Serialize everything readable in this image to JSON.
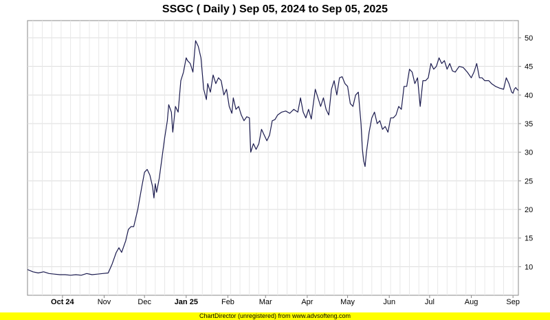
{
  "chart_data": {
    "type": "line",
    "title": "SSGC ( Daily ) Sep 05, 2024 to Sep 05, 2025",
    "xlabel": "",
    "ylabel": "",
    "x_tick_labels": [
      "Oct 24",
      "Nov",
      "Dec",
      "Jan 25",
      "Feb",
      "Mar",
      "Apr",
      "May",
      "Jun",
      "Jul",
      "Aug",
      "Sep"
    ],
    "x_tick_bold": [
      "Oct 24",
      "Jan 25"
    ],
    "x_tick_dates": [
      "2024-10-01",
      "2024-11-01",
      "2024-12-01",
      "2025-01-01",
      "2025-02-01",
      "2025-03-01",
      "2025-04-01",
      "2025-05-01",
      "2025-06-01",
      "2025-07-01",
      "2025-08-01",
      "2025-09-01"
    ],
    "xlim": [
      "2024-09-05",
      "2025-09-05"
    ],
    "ylim": [
      5,
      53
    ],
    "y_ticks": [
      10,
      15,
      20,
      25,
      30,
      35,
      40,
      45,
      50
    ],
    "y_axis_position": "right",
    "grid": true,
    "series": [
      {
        "color": "#1a1a4e",
        "points": [
          [
            "2024-09-05",
            9.5
          ],
          [
            "2024-09-09",
            9.1
          ],
          [
            "2024-09-13",
            8.9
          ],
          [
            "2024-09-17",
            9.1
          ],
          [
            "2024-09-21",
            8.8
          ],
          [
            "2024-09-25",
            8.7
          ],
          [
            "2024-09-29",
            8.6
          ],
          [
            "2024-10-03",
            8.6
          ],
          [
            "2024-10-07",
            8.5
          ],
          [
            "2024-10-11",
            8.6
          ],
          [
            "2024-10-15",
            8.5
          ],
          [
            "2024-10-19",
            8.8
          ],
          [
            "2024-10-23",
            8.6
          ],
          [
            "2024-10-27",
            8.7
          ],
          [
            "2024-10-31",
            8.8
          ],
          [
            "2024-11-04",
            8.9
          ],
          [
            "2024-11-07",
            10.5
          ],
          [
            "2024-11-10",
            12.5
          ],
          [
            "2024-11-12",
            13.3
          ],
          [
            "2024-11-14",
            12.5
          ],
          [
            "2024-11-17",
            14.5
          ],
          [
            "2024-11-19",
            16.5
          ],
          [
            "2024-11-21",
            17.0
          ],
          [
            "2024-11-23",
            17.0
          ],
          [
            "2024-11-26",
            20.0
          ],
          [
            "2024-11-29",
            24.0
          ],
          [
            "2024-12-01",
            26.5
          ],
          [
            "2024-12-03",
            27.0
          ],
          [
            "2024-12-05",
            26.0
          ],
          [
            "2024-12-07",
            24.0
          ],
          [
            "2024-12-08",
            22.0
          ],
          [
            "2024-12-09",
            24.5
          ],
          [
            "2024-12-10",
            23.0
          ],
          [
            "2024-12-12",
            25.5
          ],
          [
            "2024-12-14",
            29.0
          ],
          [
            "2024-12-16",
            32.5
          ],
          [
            "2024-12-18",
            35.5
          ],
          [
            "2024-12-19",
            38.3
          ],
          [
            "2024-12-21",
            37.0
          ],
          [
            "2024-12-22",
            33.5
          ],
          [
            "2024-12-24",
            38.0
          ],
          [
            "2024-12-26",
            37.0
          ],
          [
            "2024-12-28",
            42.5
          ],
          [
            "2024-12-30",
            44.0
          ],
          [
            "2025-01-01",
            46.5
          ],
          [
            "2025-01-02",
            46.0
          ],
          [
            "2025-01-04",
            45.5
          ],
          [
            "2025-01-06",
            44.0
          ],
          [
            "2025-01-08",
            49.5
          ],
          [
            "2025-01-10",
            48.5
          ],
          [
            "2025-01-12",
            46.5
          ],
          [
            "2025-01-14",
            41.0
          ],
          [
            "2025-01-16",
            39.2
          ],
          [
            "2025-01-17",
            42.0
          ],
          [
            "2025-01-19",
            40.5
          ],
          [
            "2025-01-21",
            43.5
          ],
          [
            "2025-01-23",
            42.0
          ],
          [
            "2025-01-25",
            43.0
          ],
          [
            "2025-01-27",
            42.5
          ],
          [
            "2025-01-29",
            40.0
          ],
          [
            "2025-01-31",
            41.0
          ],
          [
            "2025-02-02",
            38.0
          ],
          [
            "2025-02-04",
            36.8
          ],
          [
            "2025-02-05",
            39.5
          ],
          [
            "2025-02-07",
            37.5
          ],
          [
            "2025-02-09",
            38.0
          ],
          [
            "2025-02-11",
            36.5
          ],
          [
            "2025-02-13",
            35.5
          ],
          [
            "2025-02-15",
            36.2
          ],
          [
            "2025-02-17",
            36.0
          ],
          [
            "2025-02-18",
            30.0
          ],
          [
            "2025-02-20",
            31.5
          ],
          [
            "2025-02-22",
            30.5
          ],
          [
            "2025-02-24",
            31.5
          ],
          [
            "2025-02-26",
            34.0
          ],
          [
            "2025-02-28",
            33.0
          ],
          [
            "2025-03-02",
            32.0
          ],
          [
            "2025-03-04",
            33.0
          ],
          [
            "2025-03-06",
            35.5
          ],
          [
            "2025-03-08",
            35.7
          ],
          [
            "2025-03-10",
            36.5
          ],
          [
            "2025-03-13",
            37.0
          ],
          [
            "2025-03-16",
            37.2
          ],
          [
            "2025-03-19",
            36.8
          ],
          [
            "2025-03-22",
            37.5
          ],
          [
            "2025-03-25",
            37.0
          ],
          [
            "2025-03-27",
            39.5
          ],
          [
            "2025-03-29",
            37.0
          ],
          [
            "2025-03-31",
            36.0
          ],
          [
            "2025-04-02",
            37.5
          ],
          [
            "2025-04-04",
            35.8
          ],
          [
            "2025-04-07",
            41.0
          ],
          [
            "2025-04-09",
            39.5
          ],
          [
            "2025-04-11",
            38.0
          ],
          [
            "2025-04-13",
            39.5
          ],
          [
            "2025-04-15",
            37.5
          ],
          [
            "2025-04-17",
            36.5
          ],
          [
            "2025-04-19",
            41.0
          ],
          [
            "2025-04-21",
            42.5
          ],
          [
            "2025-04-23",
            40.0
          ],
          [
            "2025-04-25",
            43.0
          ],
          [
            "2025-04-27",
            43.2
          ],
          [
            "2025-04-29",
            42.0
          ],
          [
            "2025-05-01",
            41.5
          ],
          [
            "2025-05-03",
            38.5
          ],
          [
            "2025-05-05",
            38.0
          ],
          [
            "2025-05-07",
            40.0
          ],
          [
            "2025-05-09",
            40.5
          ],
          [
            "2025-05-11",
            35.0
          ],
          [
            "2025-05-12",
            30.5
          ],
          [
            "2025-05-13",
            28.5
          ],
          [
            "2025-05-14",
            27.5
          ],
          [
            "2025-05-15",
            30.0
          ],
          [
            "2025-05-17",
            33.5
          ],
          [
            "2025-05-19",
            36.0
          ],
          [
            "2025-05-21",
            37.0
          ],
          [
            "2025-05-23",
            35.0
          ],
          [
            "2025-05-25",
            35.5
          ],
          [
            "2025-05-27",
            34.0
          ],
          [
            "2025-05-29",
            34.5
          ],
          [
            "2025-05-31",
            33.5
          ],
          [
            "2025-06-02",
            36.0
          ],
          [
            "2025-06-04",
            36.0
          ],
          [
            "2025-06-06",
            36.5
          ],
          [
            "2025-06-08",
            38.0
          ],
          [
            "2025-06-10",
            37.5
          ],
          [
            "2025-06-12",
            41.5
          ],
          [
            "2025-06-14",
            41.5
          ],
          [
            "2025-06-16",
            44.5
          ],
          [
            "2025-06-18",
            44.0
          ],
          [
            "2025-06-20",
            42.0
          ],
          [
            "2025-06-22",
            43.0
          ],
          [
            "2025-06-24",
            38.0
          ],
          [
            "2025-06-26",
            42.5
          ],
          [
            "2025-06-28",
            42.5
          ],
          [
            "2025-06-30",
            43.0
          ],
          [
            "2025-07-02",
            45.5
          ],
          [
            "2025-07-04",
            44.5
          ],
          [
            "2025-07-06",
            45.0
          ],
          [
            "2025-07-08",
            46.5
          ],
          [
            "2025-07-10",
            45.5
          ],
          [
            "2025-07-12",
            46.0
          ],
          [
            "2025-07-14",
            44.5
          ],
          [
            "2025-07-16",
            45.5
          ],
          [
            "2025-07-18",
            44.2
          ],
          [
            "2025-07-20",
            44.0
          ],
          [
            "2025-07-23",
            45.0
          ],
          [
            "2025-07-26",
            44.8
          ],
          [
            "2025-07-29",
            44.0
          ],
          [
            "2025-08-01",
            43.0
          ],
          [
            "2025-08-03",
            44.0
          ],
          [
            "2025-08-05",
            45.5
          ],
          [
            "2025-08-07",
            43.0
          ],
          [
            "2025-08-09",
            43.0
          ],
          [
            "2025-08-11",
            42.5
          ],
          [
            "2025-08-14",
            42.5
          ],
          [
            "2025-08-16",
            42.0
          ],
          [
            "2025-08-19",
            41.5
          ],
          [
            "2025-08-22",
            41.2
          ],
          [
            "2025-08-25",
            41.0
          ],
          [
            "2025-08-27",
            43.0
          ],
          [
            "2025-08-29",
            42.0
          ],
          [
            "2025-08-31",
            40.5
          ],
          [
            "2025-09-01",
            40.3
          ],
          [
            "2025-09-02",
            41.0
          ],
          [
            "2025-09-03",
            41.3
          ],
          [
            "2025-09-04",
            41.0
          ],
          [
            "2025-09-05",
            40.8
          ]
        ]
      }
    ]
  },
  "footer": {
    "text": "ChartDirector (unregistered) from www.advsofteng.com"
  }
}
